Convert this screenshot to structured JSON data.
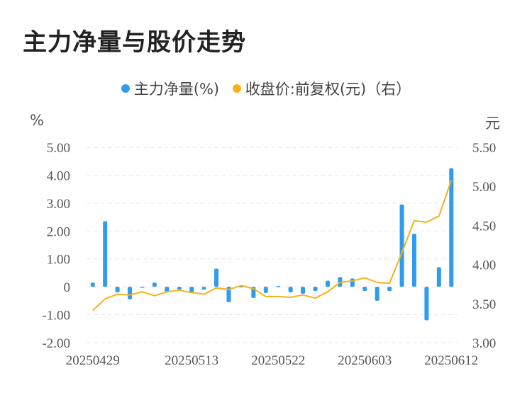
{
  "title": "主力净量与股价走势",
  "legend": {
    "item1": "主力净量(%)",
    "item2": "收盘价:前复权(元)（右）",
    "color1": "#2f9cf0",
    "color2": "#f5b21b"
  },
  "left_unit": "%",
  "right_unit": "元",
  "chart_data": {
    "type": "bar",
    "title": "主力净量与股价走势",
    "x_tick_labels": [
      "20250429",
      "20250513",
      "20250522",
      "20250603",
      "20250612"
    ],
    "left_axis": {
      "ticks": [
        "5.00",
        "4.00",
        "3.00",
        "2.00",
        "1.00",
        "0",
        "-1.00",
        "-2.00"
      ],
      "ylim": [
        -2,
        5
      ]
    },
    "right_axis": {
      "ticks": [
        "5.50",
        "5.00",
        "4.50",
        "4.00",
        "3.50",
        "3.00"
      ],
      "ylim": [
        3,
        5.5
      ]
    },
    "series": [
      {
        "name": "主力净量(%)",
        "type": "bar",
        "color": "#2f9cf0",
        "values": [
          0.15,
          2.35,
          -0.2,
          -0.45,
          -0.02,
          0.15,
          -0.2,
          -0.1,
          -0.2,
          -0.1,
          0.65,
          -0.55,
          0.02,
          -0.4,
          -0.22,
          0.03,
          -0.2,
          -0.25,
          -0.15,
          0.22,
          0.35,
          0.3,
          -0.15,
          -0.5,
          -0.15,
          2.95,
          1.9,
          -1.2,
          0.7,
          4.25
        ]
      },
      {
        "name": "收盘价:前复权(元)（右）",
        "type": "line",
        "color": "#f5b21b",
        "values": [
          3.41,
          3.56,
          3.62,
          3.61,
          3.65,
          3.6,
          3.65,
          3.67,
          3.64,
          3.62,
          3.7,
          3.68,
          3.73,
          3.69,
          3.59,
          3.59,
          3.58,
          3.61,
          3.57,
          3.65,
          3.77,
          3.79,
          3.83,
          3.77,
          3.76,
          4.15,
          4.56,
          4.54,
          4.62,
          5.08
        ]
      }
    ]
  }
}
